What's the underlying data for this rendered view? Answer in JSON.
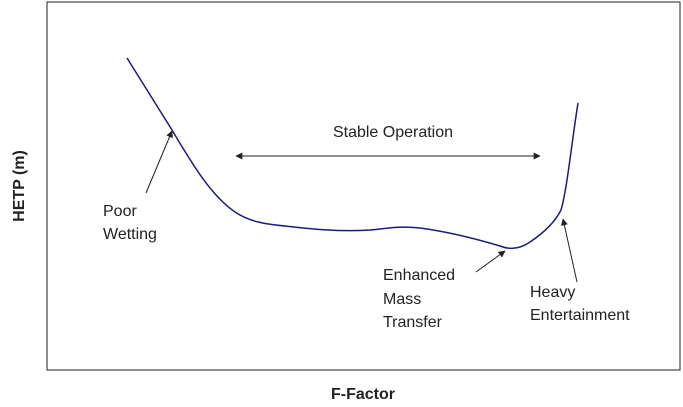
{
  "axes": {
    "x_label": "F-Factor",
    "y_label": "HETP (m)"
  },
  "annotations": {
    "stable_operation": "Stable Operation",
    "poor_wetting": [
      "Poor",
      "Wetting"
    ],
    "enhanced_mass_transfer": [
      "Enhanced",
      "Mass",
      "Transfer"
    ],
    "heavy_entertainment": [
      "Heavy",
      "Entertainment"
    ]
  }
}
